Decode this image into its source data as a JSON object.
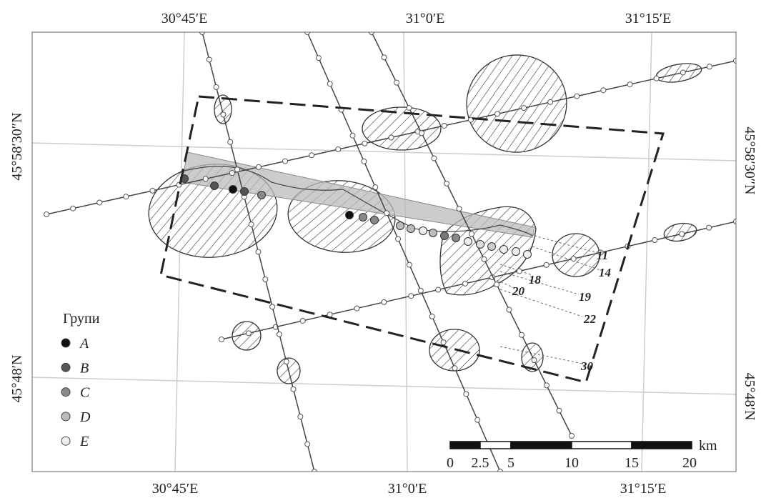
{
  "map": {
    "top_labels": [
      "30°45′E",
      "31°0′E",
      "31°15′E"
    ],
    "bottom_labels": [
      "30°45′E",
      "31°0′E",
      "31°15′E"
    ],
    "left_labels": [
      "45°58′30″N",
      "45°48′N"
    ],
    "right_labels": [
      "45°58′30″N",
      "45°48′N"
    ],
    "legend": {
      "title": "Групи",
      "items": [
        "A",
        "B",
        "C",
        "D",
        "E"
      ]
    },
    "track_labels": [
      "11",
      "14",
      "18",
      "19",
      "20",
      "22",
      "30"
    ],
    "scale_bar": {
      "labels": [
        "0",
        "2.5",
        "5",
        "10",
        "15",
        "20"
      ],
      "unit": "km"
    }
  }
}
